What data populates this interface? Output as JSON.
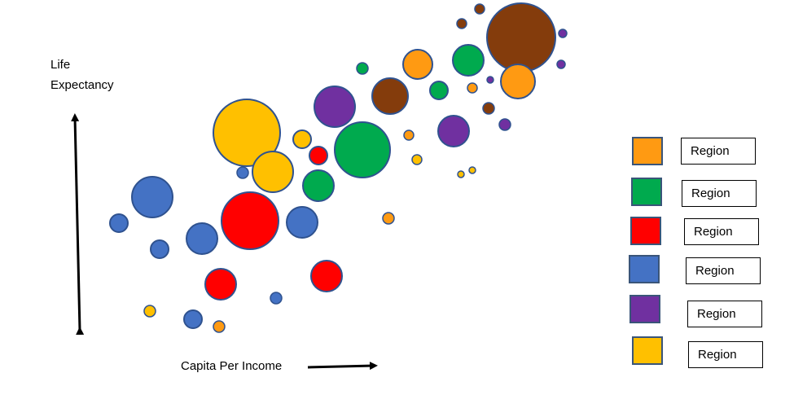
{
  "labels": {
    "y_axis": "Life Expectancy",
    "x_axis": "Capita Per Income"
  },
  "legend": [
    {
      "label": "Region",
      "color": "#FF9A12"
    },
    {
      "label": "Region",
      "color": "#00AA4E"
    },
    {
      "label": "Region",
      "color": "#FF0000"
    },
    {
      "label": "Region",
      "color": "#4472C4"
    },
    {
      "label": "Region",
      "color": "#7030A0"
    },
    {
      "label": "Region",
      "color": "#FFC000"
    }
  ],
  "colors": {
    "orange": "#FF9A12",
    "green": "#00AA4E",
    "red": "#FF0000",
    "blue": "#4472C4",
    "purple": "#7030A0",
    "yellow": "#FFC000",
    "brown": "#843C0C",
    "stroke": "#2F528F"
  }
}
